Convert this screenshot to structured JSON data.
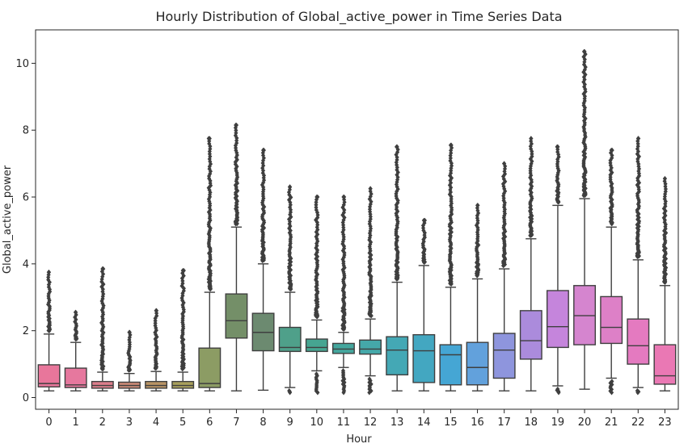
{
  "chart_data": {
    "type": "box",
    "title": "Hourly Distribution of Global_active_power in Time Series Data",
    "xlabel": "Hour",
    "ylabel": "Global_active_power",
    "ylim": [
      -0.35,
      11.0
    ],
    "yticks": [
      0,
      2,
      4,
      6,
      8,
      10
    ],
    "grid": false,
    "categories": [
      "0",
      "1",
      "2",
      "3",
      "4",
      "5",
      "6",
      "7",
      "8",
      "9",
      "10",
      "11",
      "12",
      "13",
      "14",
      "15",
      "16",
      "17",
      "18",
      "19",
      "20",
      "21",
      "22",
      "23"
    ],
    "colors": [
      "#e8769b",
      "#e6789e",
      "#dc7e8c",
      "#c98976",
      "#b99465",
      "#a8a05c",
      "#8c9c64",
      "#748f68",
      "#6c8a70",
      "#4fa08a",
      "#46a591",
      "#44a69d",
      "#45a8a9",
      "#44a8b5",
      "#43a7c1",
      "#45a6d4",
      "#62a1dc",
      "#8e95dd",
      "#ab8bdc",
      "#c585dc",
      "#d585cf",
      "#dd80c7",
      "#e47ac0",
      "#ea78b4"
    ],
    "boxes": [
      {
        "q1": 0.32,
        "median": 0.42,
        "q3": 0.98,
        "whislo": 0.2,
        "whishi": 1.9,
        "fliers_top": 3.75
      },
      {
        "q1": 0.3,
        "median": 0.38,
        "q3": 0.88,
        "whislo": 0.2,
        "whishi": 1.65,
        "fliers_top": 2.55
      },
      {
        "q1": 0.28,
        "median": 0.36,
        "q3": 0.48,
        "whislo": 0.2,
        "whishi": 0.76,
        "fliers_top": 3.85
      },
      {
        "q1": 0.28,
        "median": 0.36,
        "q3": 0.46,
        "whislo": 0.2,
        "whishi": 0.72,
        "fliers_top": 1.95
      },
      {
        "q1": 0.28,
        "median": 0.36,
        "q3": 0.48,
        "whislo": 0.2,
        "whishi": 0.78,
        "fliers_top": 2.6
      },
      {
        "q1": 0.28,
        "median": 0.36,
        "q3": 0.48,
        "whislo": 0.2,
        "whishi": 0.76,
        "fliers_top": 3.8
      },
      {
        "q1": 0.3,
        "median": 0.42,
        "q3": 1.48,
        "whislo": 0.2,
        "whishi": 3.15,
        "fliers_top": 7.75
      },
      {
        "q1": 1.78,
        "median": 2.3,
        "q3": 3.1,
        "whislo": 0.2,
        "whishi": 5.1,
        "fliers_top": 8.15
      },
      {
        "q1": 1.4,
        "median": 1.95,
        "q3": 2.52,
        "whislo": 0.22,
        "whishi": 4.0,
        "fliers_top": 7.4
      },
      {
        "q1": 1.38,
        "median": 1.5,
        "q3": 2.1,
        "whislo": 0.3,
        "whishi": 3.15,
        "fliers_top": 6.3
      },
      {
        "q1": 1.38,
        "median": 1.5,
        "q3": 1.75,
        "whislo": 0.8,
        "whishi": 2.32,
        "fliers_top": 6.0
      },
      {
        "q1": 1.32,
        "median": 1.45,
        "q3": 1.62,
        "whislo": 0.9,
        "whishi": 1.95,
        "fliers_top": 6.0
      },
      {
        "q1": 1.3,
        "median": 1.45,
        "q3": 1.72,
        "whislo": 0.65,
        "whishi": 2.35,
        "fliers_top": 6.25
      },
      {
        "q1": 0.68,
        "median": 1.42,
        "q3": 1.82,
        "whislo": 0.2,
        "whishi": 3.45,
        "fliers_top": 7.5
      },
      {
        "q1": 0.45,
        "median": 1.4,
        "q3": 1.88,
        "whislo": 0.2,
        "whishi": 3.95,
        "fliers_top": 5.3
      },
      {
        "q1": 0.38,
        "median": 1.28,
        "q3": 1.58,
        "whislo": 0.2,
        "whishi": 3.3,
        "fliers_top": 7.55
      },
      {
        "q1": 0.38,
        "median": 0.9,
        "q3": 1.65,
        "whislo": 0.2,
        "whishi": 3.55,
        "fliers_top": 5.75
      },
      {
        "q1": 0.58,
        "median": 1.42,
        "q3": 1.92,
        "whislo": 0.2,
        "whishi": 3.85,
        "fliers_top": 7.0
      },
      {
        "q1": 1.15,
        "median": 1.7,
        "q3": 2.6,
        "whislo": 0.2,
        "whishi": 4.75,
        "fliers_top": 7.75
      },
      {
        "q1": 1.5,
        "median": 2.12,
        "q3": 3.2,
        "whislo": 0.35,
        "whishi": 5.75,
        "fliers_top": 7.5
      },
      {
        "q1": 1.58,
        "median": 2.45,
        "q3": 3.35,
        "whislo": 0.25,
        "whishi": 5.95,
        "fliers_top": 10.35
      },
      {
        "q1": 1.62,
        "median": 2.1,
        "q3": 3.02,
        "whislo": 0.58,
        "whishi": 5.1,
        "fliers_top": 7.4
      },
      {
        "q1": 1.0,
        "median": 1.55,
        "q3": 2.35,
        "whislo": 0.3,
        "whishi": 4.12,
        "fliers_top": 7.75
      },
      {
        "q1": 0.4,
        "median": 0.65,
        "q3": 1.58,
        "whislo": 0.2,
        "whishi": 3.35,
        "fliers_top": 6.55
      }
    ]
  }
}
